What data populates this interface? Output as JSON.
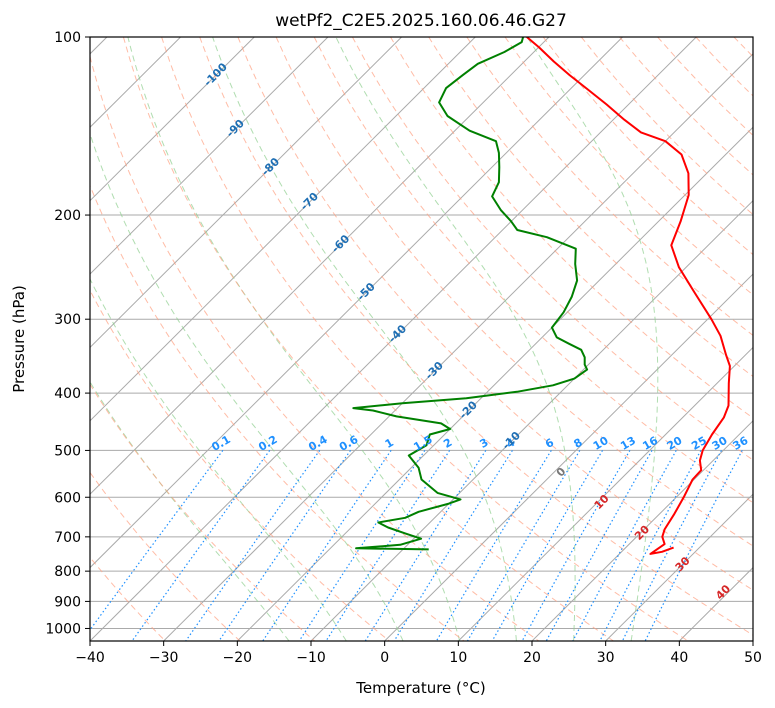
{
  "chart_data": {
    "type": "line",
    "title": "wetPf2_C2E5.2025.160.06.46.G27",
    "xlabel": "Temperature (°C)",
    "ylabel": "Pressure (hPa)",
    "xlim": [
      -40,
      50
    ],
    "ylim": [
      1050,
      100
    ],
    "y_scale": "log",
    "grid": true,
    "x_ticks": [
      -40,
      -30,
      -20,
      -10,
      0,
      10,
      20,
      30,
      40,
      50
    ],
    "y_ticks": [
      100,
      200,
      300,
      400,
      500,
      600,
      700,
      800,
      900,
      1000
    ],
    "colors": {
      "temperature": "#ff0000",
      "dewpoint": "#008000",
      "isotherm": "#aaaaaa",
      "dry_adiabat": "#ff9f80",
      "moist_adiabat": "#8fcf8f",
      "mixing_ratio": "#1e90ff",
      "isotherm_label": "#1f6fb4",
      "adiabat_label": "#d62728"
    },
    "series": [
      {
        "type": "temperature",
        "points": [
          [
            26.5,
            730
          ],
          [
            25.5,
            742
          ],
          [
            24.2,
            748
          ],
          [
            24.8,
            720
          ],
          [
            23.5,
            700
          ],
          [
            22.8,
            680
          ],
          [
            22.0,
            640
          ],
          [
            21.0,
            600
          ],
          [
            19.8,
            560
          ],
          [
            19.7,
            540
          ],
          [
            18.2,
            520
          ],
          [
            17.2,
            500
          ],
          [
            16.3,
            470
          ],
          [
            15.6,
            440
          ],
          [
            14.6,
            420
          ],
          [
            11.6,
            385
          ],
          [
            9.4,
            360
          ],
          [
            7.4,
            345
          ],
          [
            4.0,
            320
          ],
          [
            0.5,
            300
          ],
          [
            -5.5,
            270
          ],
          [
            -11.0,
            245
          ],
          [
            -15.0,
            225
          ],
          [
            -17.0,
            205
          ],
          [
            -19.5,
            185
          ],
          [
            -22.5,
            170
          ],
          [
            -26.0,
            158
          ],
          [
            -30.0,
            150
          ],
          [
            -34.5,
            145
          ],
          [
            -38.5,
            138
          ],
          [
            -43.0,
            130
          ],
          [
            -48.0,
            122
          ],
          [
            -52.0,
            116
          ],
          [
            -56.0,
            110
          ],
          [
            -60.0,
            104
          ],
          [
            -63.0,
            100
          ]
        ]
      },
      {
        "type": "dewpoint",
        "points": [
          [
            -6.5,
            735
          ],
          [
            -16.5,
            732
          ],
          [
            -11.0,
            722
          ],
          [
            -9.0,
            705
          ],
          [
            -12.0,
            690
          ],
          [
            -15.0,
            675
          ],
          [
            -17.0,
            662
          ],
          [
            -14.0,
            650
          ],
          [
            -13.0,
            635
          ],
          [
            -10.0,
            615
          ],
          [
            -9.0,
            605
          ],
          [
            -13.0,
            590
          ],
          [
            -17.0,
            560
          ],
          [
            -19.0,
            535
          ],
          [
            -22.0,
            510
          ],
          [
            -21.0,
            490
          ],
          [
            -22.0,
            470
          ],
          [
            -20.0,
            460
          ],
          [
            -22.0,
            450
          ],
          [
            -29.0,
            438
          ],
          [
            -33.0,
            428
          ],
          [
            -36.0,
            424
          ],
          [
            -30.0,
            416
          ],
          [
            -22.0,
            408
          ],
          [
            -16.0,
            398
          ],
          [
            -12.0,
            388
          ],
          [
            -10.0,
            378
          ],
          [
            -9.5,
            365
          ],
          [
            -10.5,
            358
          ],
          [
            -11.5,
            348
          ],
          [
            -13.0,
            338
          ],
          [
            -15.5,
            330
          ],
          [
            -18.0,
            322
          ],
          [
            -20.0,
            310
          ],
          [
            -20.5,
            292
          ],
          [
            -21.5,
            275
          ],
          [
            -23.0,
            258
          ],
          [
            -25.5,
            242
          ],
          [
            -27.5,
            228
          ],
          [
            -33.0,
            218
          ],
          [
            -38.0,
            212
          ],
          [
            -40.0,
            205
          ],
          [
            -43.0,
            196
          ],
          [
            -46.0,
            186
          ],
          [
            -47.0,
            176
          ],
          [
            -49.0,
            166
          ],
          [
            -51.0,
            157
          ],
          [
            -53.0,
            150
          ],
          [
            -58.0,
            144
          ],
          [
            -63.0,
            136
          ],
          [
            -66.0,
            129
          ],
          [
            -67.0,
            122
          ],
          [
            -66.5,
            116
          ],
          [
            -66.0,
            111
          ],
          [
            -64.0,
            106
          ],
          [
            -63.0,
            102
          ],
          [
            -63.5,
            100
          ]
        ]
      }
    ],
    "isotherm_labels": [
      "-100",
      "-90",
      "-80",
      "-70",
      "-60",
      "-50",
      "-40",
      "-30",
      "-20",
      "-10",
      "0",
      "10",
      "20",
      "30",
      "40"
    ],
    "mixing_ratio_labels": [
      "0.1",
      "0.2",
      "0.4",
      "0.6",
      "1",
      "1.5",
      "2",
      "3",
      "4",
      "6",
      "8",
      "10",
      "13",
      "16",
      "20",
      "25",
      "30",
      "36"
    ]
  }
}
